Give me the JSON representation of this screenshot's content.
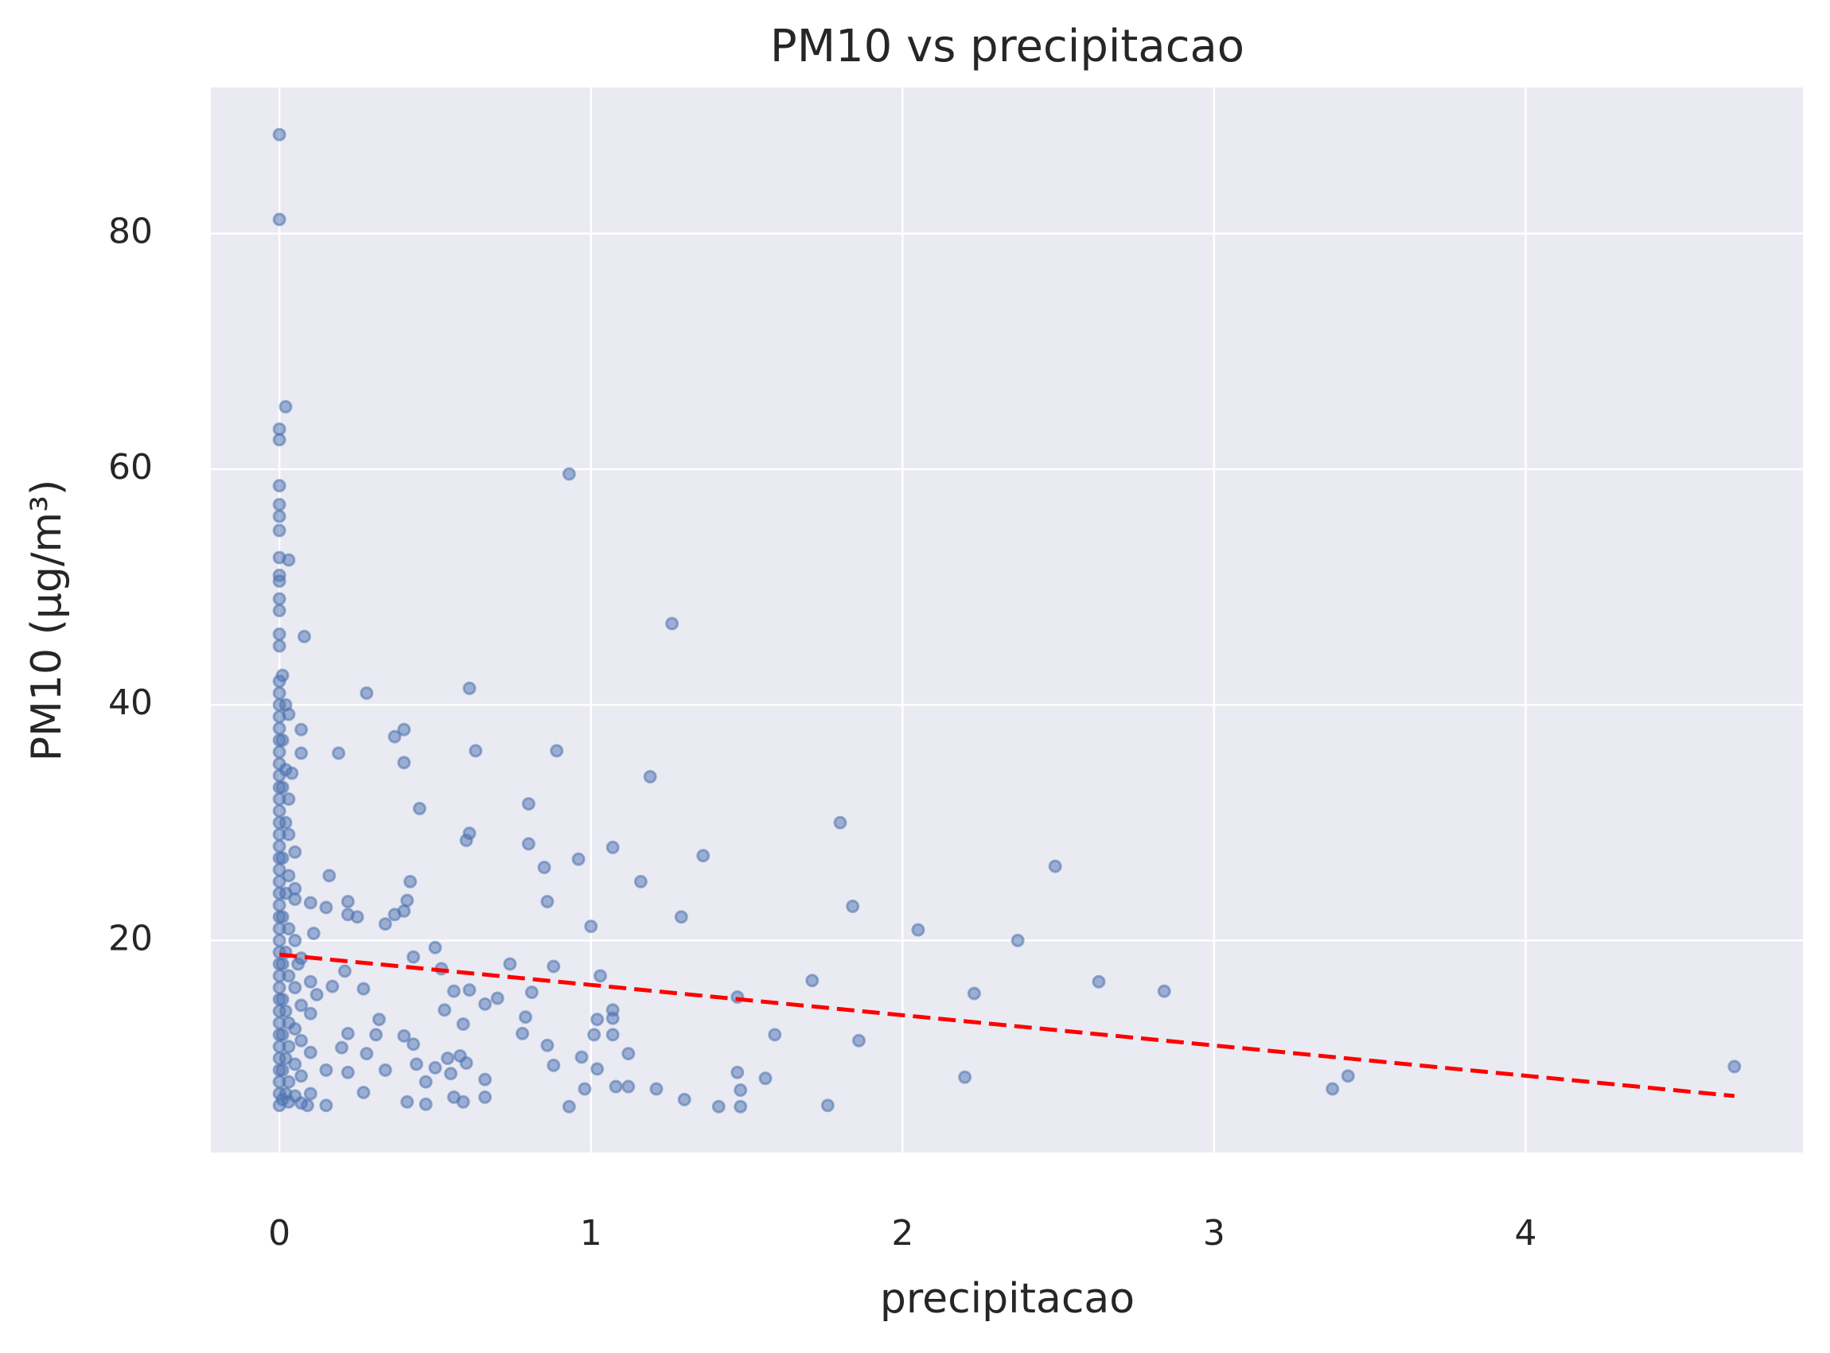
{
  "chart_data": {
    "type": "scatter",
    "title": "PM10 vs precipitacao",
    "x_label": "precipitacao",
    "y_label": "PM10 (µg/m³)",
    "color": "#4c72b0",
    "grid": true,
    "xlim": [
      -0.22,
      4.89
    ],
    "ylim": [
      2,
      92.4
    ],
    "xticks": [
      0,
      1,
      2,
      3,
      4
    ],
    "yticks": [
      20,
      40,
      60,
      80
    ],
    "x": [
      0,
      0,
      0,
      0,
      0,
      0,
      0,
      0,
      0,
      0,
      0,
      0,
      0,
      0,
      0,
      0,
      0,
      0,
      0,
      0,
      0,
      0,
      0,
      0,
      0,
      0,
      0,
      0,
      0,
      0,
      0,
      0,
      0,
      0,
      0,
      0,
      0,
      0,
      0,
      0,
      0,
      0,
      0,
      0,
      0,
      0,
      0,
      0,
      0,
      0,
      0,
      0,
      0.01,
      0.01,
      0.01,
      0.01,
      0.01,
      0.01,
      0.01,
      0.01,
      0.01,
      0.01,
      0.02,
      0.02,
      0.02,
      0.02,
      0.02,
      0.02,
      0.02,
      0.02,
      0.02,
      0.03,
      0.03,
      0.03,
      0.03,
      0.03,
      0.03,
      0.03,
      0.03,
      0.03,
      0.03,
      0.03,
      0.04,
      0.05,
      0.05,
      0.05,
      0.05,
      0.05,
      0.05,
      0.05,
      0.05,
      0.07,
      0.07,
      0.07,
      0.07,
      0.07,
      0.07,
      0.07,
      0.08,
      0.1,
      0.1,
      0.1,
      0.1,
      0.1,
      0.28,
      0.37,
      0.4,
      0.4,
      0.45,
      0.61,
      0.63,
      0.61,
      0.6,
      0.8,
      0.89,
      0.8,
      0.85,
      0.96,
      0.86,
      1.0,
      1.07,
      0.93,
      1.26,
      1.19,
      1.36,
      1.16,
      1.29,
      1.8,
      1.84,
      2.05,
      2.37,
      2.49,
      2.63,
      2.84,
      2.23,
      1.71,
      1.47,
      1.59,
      1.86,
      2.2,
      3.38,
      3.43,
      4.67,
      1.76,
      1.56,
      1.47,
      1.48,
      1.41,
      1.48,
      1.3,
      1.21,
      1.12,
      1.08,
      1.12,
      1.02,
      0.97,
      0.98,
      0.93,
      0.88,
      0.86,
      0.78,
      0.79,
      0.81,
      0.88,
      1.03,
      1.07,
      1.07,
      1.02,
      1.01,
      1.07,
      0.74,
      0.7,
      0.66,
      0.66,
      0.66,
      0.61,
      0.59,
      0.56,
      0.53,
      0.5,
      0.52,
      0.43,
      0.42,
      0.41,
      0.4,
      0.37,
      0.34,
      0.43,
      0.4,
      0.44,
      0.47,
      0.41,
      0.47,
      0.5,
      0.55,
      0.54,
      0.58,
      0.6,
      0.56,
      0.59,
      0.34,
      0.31,
      0.32,
      0.28,
      0.27,
      0.22,
      0.22,
      0.2,
      0.17,
      0.16,
      0.15,
      0.11,
      0.22,
      0.22,
      0.25,
      0.21,
      0.27,
      0.12,
      0.06,
      0.15,
      0.09,
      0.15,
      0.19
    ],
    "values": [
      6,
      7,
      8,
      9,
      10,
      11,
      12,
      13,
      14,
      15,
      16,
      17,
      18,
      19,
      20,
      21,
      22,
      23,
      24,
      25,
      26,
      27,
      28,
      29,
      30,
      31,
      32,
      33,
      34,
      35,
      36,
      37,
      38,
      39,
      40,
      41,
      42,
      45,
      46,
      48,
      49,
      50.5,
      51,
      52.5,
      54.8,
      56,
      57,
      58.6,
      62.5,
      63.4,
      81.2,
      88.4,
      6.5,
      9,
      12,
      15,
      18,
      22,
      27,
      33,
      37,
      42.5,
      7,
      10,
      14,
      19,
      24,
      30,
      34.5,
      40,
      65.3,
      6.3,
      8,
      11,
      13,
      17,
      21,
      25.5,
      29,
      32,
      52.3,
      39.2,
      34.2,
      6.8,
      9.5,
      12.5,
      16,
      20,
      23.5,
      27.5,
      24.4,
      6.2,
      8.5,
      11.5,
      14.5,
      18.5,
      37.9,
      35.9,
      45.8,
      7,
      10.5,
      13.8,
      16.5,
      23.2,
      41,
      37.3,
      37.9,
      35.1,
      31.2,
      41.4,
      36.1,
      29.1,
      28.5,
      31.6,
      36.1,
      28.2,
      26.2,
      26.9,
      23.3,
      21.2,
      27.9,
      59.6,
      46.9,
      33.9,
      27.2,
      25.0,
      22.0,
      30.0,
      22.9,
      20.9,
      20.0,
      26.3,
      16.5,
      15.7,
      15.5,
      16.6,
      15.2,
      12.0,
      11.5,
      8.4,
      7.4,
      8.5,
      9.3,
      6.0,
      8.3,
      8.8,
      7.3,
      5.9,
      5.9,
      6.5,
      7.4,
      7.6,
      7.6,
      10.4,
      9.1,
      10.1,
      7.4,
      5.9,
      9.4,
      11.1,
      12.1,
      13.5,
      15.6,
      17.8,
      17.0,
      14.1,
      13.4,
      13.3,
      12.0,
      12.0,
      18.0,
      15.1,
      14.6,
      8.2,
      6.7,
      15.8,
      12.9,
      15.7,
      14.1,
      19.4,
      17.6,
      18.6,
      25.0,
      23.4,
      22.5,
      22.2,
      21.4,
      11.2,
      11.9,
      9.5,
      8.0,
      6.3,
      6.1,
      9.2,
      8.7,
      10.0,
      10.2,
      9.6,
      6.7,
      6.3,
      9.0,
      12.0,
      13.3,
      10.4,
      7.1,
      8.8,
      12.1,
      10.9,
      16.1,
      25.5,
      22.8,
      20.6,
      23.3,
      22.2,
      22.0,
      17.4,
      15.9,
      15.4,
      18.0,
      6.0,
      6.0,
      9.0,
      35.9
    ],
    "trend": {
      "color": "#ff0000",
      "x": [
        0,
        4.67
      ],
      "values": [
        18.8,
        6.8
      ]
    }
  }
}
